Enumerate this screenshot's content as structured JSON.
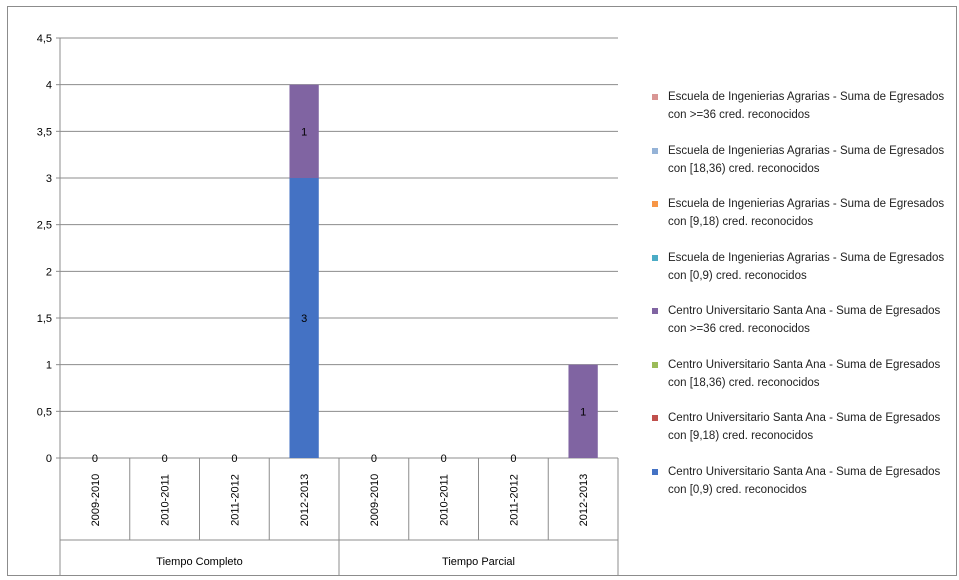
{
  "chart_data": {
    "type": "bar",
    "stacked": true,
    "ylim": [
      0,
      4.5
    ],
    "yticks": [
      "0",
      "0,5",
      "1",
      "1,5",
      "2",
      "2,5",
      "3",
      "3,5",
      "4",
      "4,5"
    ],
    "groups": [
      {
        "label": "Tiempo Completo",
        "categories": [
          "2009-2010",
          "2010-2011",
          "2011-2012",
          "2012-2013"
        ]
      },
      {
        "label": "Tiempo Parcial",
        "categories": [
          "2009-2010",
          "2010-2011",
          "2011-2012",
          "2012-2013"
        ]
      }
    ],
    "series": [
      {
        "name": "Centro Universitario Santa Ana - Suma de Egresados con [0,9) cred. reconocidos",
        "color": "#4472c4",
        "values": [
          0,
          0,
          0,
          3,
          0,
          0,
          0,
          0
        ]
      },
      {
        "name": "Centro Universitario Santa Ana - Suma de Egresados con [9,18) cred. reconocidos",
        "color": "#c0504d",
        "values": [
          0,
          0,
          0,
          0,
          0,
          0,
          0,
          0
        ]
      },
      {
        "name": "Centro Universitario Santa Ana - Suma de Egresados con [18,36) cred. reconocidos",
        "color": "#9bbb59",
        "values": [
          0,
          0,
          0,
          0,
          0,
          0,
          0,
          0
        ]
      },
      {
        "name": "Centro Universitario Santa Ana - Suma de Egresados con >=36 cred. reconocidos",
        "color": "#8064a2",
        "values": [
          0,
          0,
          0,
          1,
          0,
          0,
          0,
          1
        ]
      },
      {
        "name": "Escuela de Ingenierias Agrarias - Suma de Egresados con [0,9) cred. reconocidos",
        "color": "#4bacc6",
        "values": [
          0,
          0,
          0,
          0,
          0,
          0,
          0,
          0
        ]
      },
      {
        "name": "Escuela de Ingenierias Agrarias - Suma de Egresados con [9,18) cred. reconocidos",
        "color": "#f79646",
        "values": [
          0,
          0,
          0,
          0,
          0,
          0,
          0,
          0
        ]
      },
      {
        "name": "Escuela de Ingenierias Agrarias - Suma de Egresados con [18,36) cred. reconocidos",
        "color": "#95b3d7",
        "values": [
          0,
          0,
          0,
          0,
          0,
          0,
          0,
          0
        ]
      },
      {
        "name": "Escuela de Ingenierias Agrarias - Suma de Egresados con >=36 cred. reconocidos",
        "color": "#d99694",
        "values": [
          0,
          0,
          0,
          0,
          0,
          0,
          0,
          0
        ]
      }
    ],
    "data_labels": [
      {
        "index": 0,
        "text": "0"
      },
      {
        "index": 1,
        "text": "0"
      },
      {
        "index": 2,
        "text": "0"
      },
      {
        "index": 3,
        "series": 0,
        "text": "3"
      },
      {
        "index": 3,
        "series": 3,
        "text": "1"
      },
      {
        "index": 4,
        "text": "0"
      },
      {
        "index": 5,
        "text": "0"
      },
      {
        "index": 6,
        "text": "0"
      },
      {
        "index": 7,
        "series": 3,
        "text": "1"
      }
    ],
    "legend_order": [
      7,
      6,
      5,
      4,
      3,
      2,
      1,
      0
    ],
    "legend_position": "right",
    "grid": true
  }
}
